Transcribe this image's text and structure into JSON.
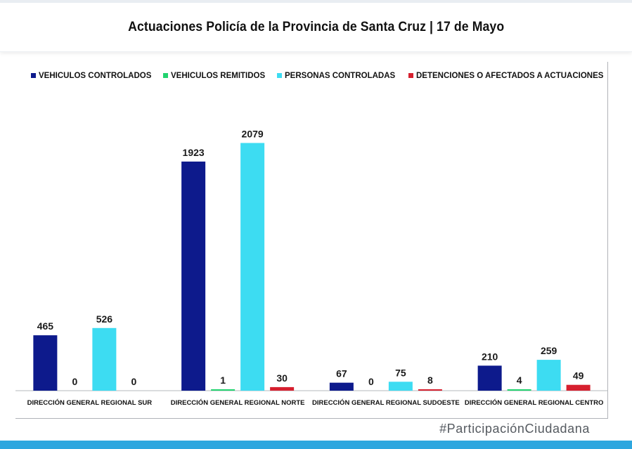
{
  "header": {
    "title": "Actuaciones Policía de la Provincia de Santa Cruz | 17 de Mayo"
  },
  "footer": {
    "hashtag": "#ParticipaciónCiudadana"
  },
  "chart_data": {
    "type": "bar",
    "title": "Actuaciones Policía de la Provincia de Santa Cruz | 17 de Mayo",
    "xlabel": "",
    "ylabel": "",
    "ylim": [
      0,
      2300
    ],
    "grid": false,
    "legend_position": "top",
    "categories": [
      "DIRECCIÓN GENERAL REGIONAL SUR",
      "DIRECCIÓN GENERAL REGIONAL NORTE",
      "DIRECCIÓN GENERAL REGIONAL SUDOESTE",
      "DIRECCIÓN GENERAL REGIONAL CENTRO"
    ],
    "series": [
      {
        "name": "VEHICULOS CONTROLADOS",
        "color": "#0d1a8c",
        "values": [
          465,
          1923,
          67,
          210
        ]
      },
      {
        "name": "VEHICULOS REMITIDOS",
        "color": "#22d36f",
        "values": [
          0,
          1,
          0,
          4
        ]
      },
      {
        "name": "PERSONAS CONTROLADAS",
        "color": "#3ddcf2",
        "values": [
          526,
          2079,
          75,
          259
        ]
      },
      {
        "name": "DETENCIONES O AFECTADOS A ACTUACIONES",
        "color": "#d6202f",
        "values": [
          0,
          30,
          8,
          49
        ]
      }
    ]
  }
}
